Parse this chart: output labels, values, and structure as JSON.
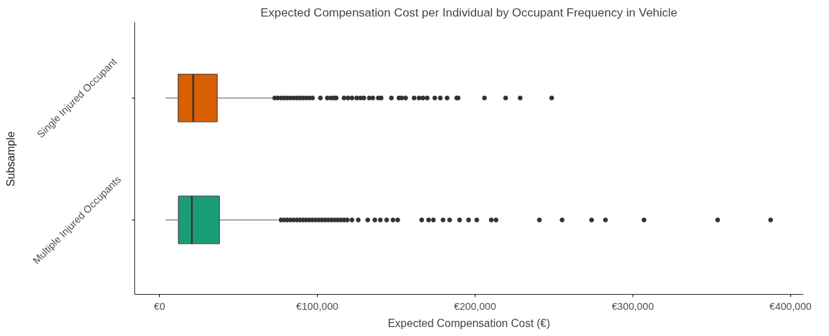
{
  "chart_data": {
    "type": "box",
    "orientation": "horizontal",
    "title": "Expected Compensation Cost per Individual by Occupant Frequency in Vehicle",
    "xlabel": "Expected Compensation Cost (€)",
    "ylabel": "Subsample",
    "categories": [
      "Single Injured Occupant",
      "Multiple Injured Occupants"
    ],
    "colors": [
      "#d95f02",
      "#1b9e77"
    ],
    "boxes": [
      {
        "low": 3900,
        "q1": 11800,
        "median": 21400,
        "q3": 36600,
        "high": 72400,
        "outliers": [
          73000,
          75000,
          77000,
          79000,
          81000,
          83000,
          85000,
          87000,
          89000,
          91000,
          93000,
          95000,
          97000,
          102000,
          106400,
          108600,
          110400,
          112000,
          117000,
          119500,
          122000,
          125000,
          127400,
          129500,
          133000,
          135200,
          138700,
          140500,
          147000,
          151800,
          153500,
          156000,
          161400,
          164500,
          167000,
          169700,
          174500,
          178000,
          182300,
          188400,
          189300,
          206000,
          219400,
          228600,
          248600
        ]
      },
      {
        "low": 4000,
        "q1": 12000,
        "median": 20500,
        "q3": 38000,
        "high": 75000,
        "outliers": [
          77000,
          79000,
          81000,
          83000,
          85000,
          87000,
          89000,
          91000,
          93000,
          95000,
          97000,
          99000,
          101000,
          103000,
          105000,
          107000,
          109000,
          111000,
          113000,
          115000,
          117000,
          119000,
          122000,
          126000,
          132000,
          136500,
          140000,
          144000,
          148000,
          151000,
          166200,
          170600,
          173600,
          179700,
          183900,
          190200,
          195900,
          201100,
          210300,
          213300,
          240800,
          255200,
          273900,
          282700,
          307100,
          353800,
          387400
        ]
      }
    ],
    "xlim": [
      -15700,
      408000
    ],
    "xticks": [
      {
        "value": 0,
        "label": "€0"
      },
      {
        "value": 100000,
        "label": "€100,000"
      },
      {
        "value": 200000,
        "label": "€200,000"
      },
      {
        "value": 300000,
        "label": "€300,000"
      },
      {
        "value": 400000,
        "label": "€400,000"
      }
    ],
    "grid": false
  }
}
